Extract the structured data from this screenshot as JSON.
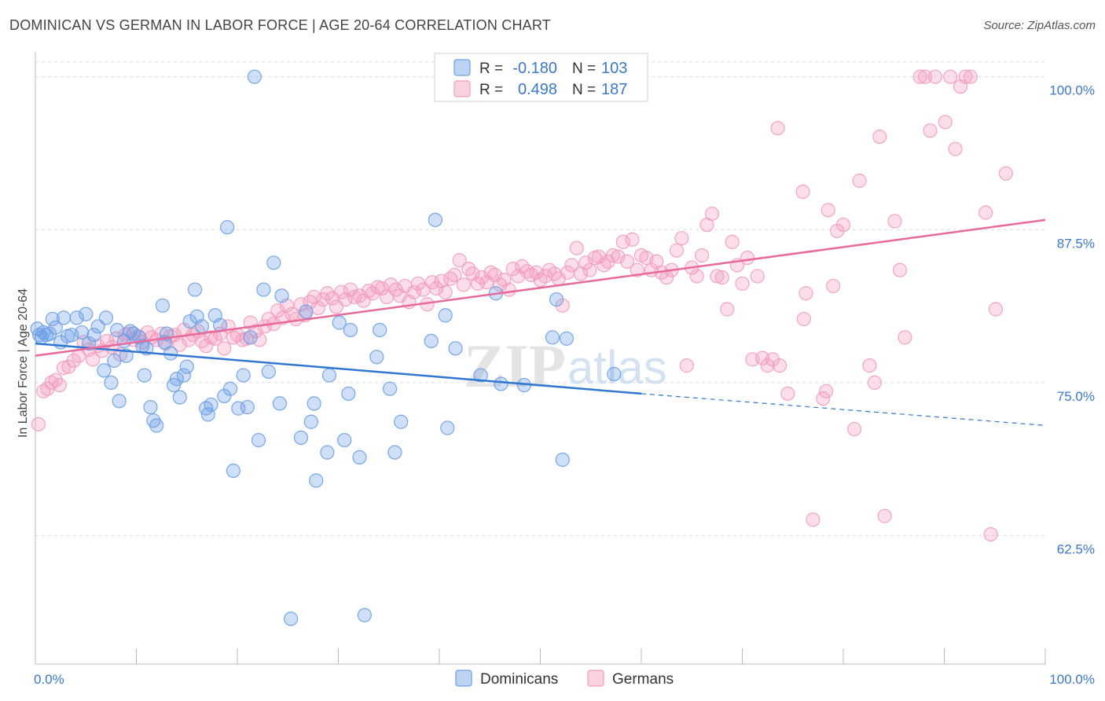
{
  "header": {
    "title": "DOMINICAN VS GERMAN IN LABOR FORCE | AGE 20-64 CORRELATION CHART",
    "source": "Source: ZipAtlas.com"
  },
  "chart_data": {
    "type": "scatter",
    "ylabel": "In Labor Force | Age 20-64",
    "x_tick_labels": [
      "0.0%",
      "100.0%"
    ],
    "y_tick_labels": [
      "100.0%",
      "87.5%",
      "75.0%",
      "62.5%"
    ],
    "y_ticks": [
      100,
      87.5,
      75,
      62.5
    ],
    "xlim": [
      0,
      100
    ],
    "ylim": [
      52,
      101.2
    ],
    "grid": true,
    "legend_position": "top-center",
    "watermark": "ZIPatlas",
    "colors": {
      "Dominicans": "#6a9ee6",
      "Germans": "#f29cbb",
      "Dominicans_line": "#2f77d1",
      "Germans_line": "#e8699a",
      "axis_tick_label": "#3a78c9"
    },
    "legend": [
      {
        "series": "Dominicans",
        "r_label": "R =",
        "r_value": "-0.180",
        "n_label": "N =",
        "n_value": "103"
      },
      {
        "series": "Germans",
        "r_label": "R =",
        "r_value": "0.498",
        "n_label": "N =",
        "n_value": "187"
      }
    ],
    "series": [
      {
        "name": "Dominicans",
        "trend": {
          "x0": 0,
          "y0": 78.2,
          "x1": 60,
          "y1": 74.1,
          "dash_to_x": 100,
          "dash_to_y": 71.5
        },
        "points": [
          [
            0.2,
            79.4
          ],
          [
            0.4,
            78.9
          ],
          [
            0.6,
            78.7
          ],
          [
            0.8,
            79.1
          ],
          [
            1.1,
            78.9
          ],
          [
            1.4,
            79.0
          ],
          [
            1.7,
            80.2
          ],
          [
            2.0,
            79.5
          ],
          [
            2.5,
            78.3
          ],
          [
            2.8,
            80.3
          ],
          [
            3.2,
            78.8
          ],
          [
            3.6,
            78.9
          ],
          [
            4.1,
            80.3
          ],
          [
            4.6,
            79.1
          ],
          [
            5.0,
            80.6
          ],
          [
            5.3,
            78.2
          ],
          [
            5.8,
            78.9
          ],
          [
            6.2,
            79.6
          ],
          [
            6.8,
            76.0
          ],
          [
            7.0,
            80.3
          ],
          [
            7.5,
            75.0
          ],
          [
            7.8,
            76.8
          ],
          [
            8.1,
            79.3
          ],
          [
            8.3,
            73.5
          ],
          [
            8.8,
            78.4
          ],
          [
            9.0,
            77.2
          ],
          [
            9.4,
            79.2
          ],
          [
            9.7,
            79.0
          ],
          [
            10.3,
            78.7
          ],
          [
            10.6,
            78.0
          ],
          [
            10.8,
            75.6
          ],
          [
            11.0,
            77.8
          ],
          [
            11.4,
            73.0
          ],
          [
            11.7,
            71.9
          ],
          [
            12.0,
            71.5
          ],
          [
            12.6,
            81.3
          ],
          [
            12.8,
            78.3
          ],
          [
            13.0,
            79.0
          ],
          [
            13.4,
            77.4
          ],
          [
            13.7,
            74.8
          ],
          [
            14.0,
            75.3
          ],
          [
            14.3,
            73.8
          ],
          [
            14.7,
            75.6
          ],
          [
            15.0,
            76.3
          ],
          [
            15.3,
            80.0
          ],
          [
            15.8,
            82.6
          ],
          [
            16.0,
            80.4
          ],
          [
            16.5,
            79.6
          ],
          [
            16.9,
            72.9
          ],
          [
            17.1,
            72.4
          ],
          [
            17.4,
            73.2
          ],
          [
            17.8,
            80.5
          ],
          [
            18.3,
            79.7
          ],
          [
            18.7,
            73.9
          ],
          [
            19.0,
            87.7
          ],
          [
            19.3,
            74.5
          ],
          [
            19.6,
            67.8
          ],
          [
            20.1,
            72.9
          ],
          [
            20.6,
            75.6
          ],
          [
            21.0,
            73.0
          ],
          [
            21.3,
            78.7
          ],
          [
            21.7,
            100.0
          ],
          [
            22.1,
            70.3
          ],
          [
            22.6,
            82.6
          ],
          [
            23.1,
            75.9
          ],
          [
            23.6,
            84.8
          ],
          [
            24.2,
            73.3
          ],
          [
            24.4,
            82.1
          ],
          [
            25.3,
            55.7
          ],
          [
            26.3,
            70.5
          ],
          [
            26.8,
            80.8
          ],
          [
            27.3,
            71.8
          ],
          [
            27.6,
            73.3
          ],
          [
            27.8,
            67.0
          ],
          [
            28.9,
            69.3
          ],
          [
            29.1,
            75.6
          ],
          [
            30.1,
            79.9
          ],
          [
            30.6,
            70.3
          ],
          [
            31.0,
            74.1
          ],
          [
            31.2,
            79.3
          ],
          [
            32.1,
            68.9
          ],
          [
            32.6,
            56.0
          ],
          [
            33.8,
            77.1
          ],
          [
            34.1,
            79.3
          ],
          [
            35.1,
            74.5
          ],
          [
            35.6,
            69.3
          ],
          [
            36.2,
            71.8
          ],
          [
            39.2,
            78.4
          ],
          [
            39.6,
            88.3
          ],
          [
            40.6,
            80.5
          ],
          [
            40.8,
            71.3
          ],
          [
            41.6,
            77.8
          ],
          [
            44.1,
            75.6
          ],
          [
            45.6,
            82.3
          ],
          [
            46.1,
            74.9
          ],
          [
            48.4,
            74.8
          ],
          [
            51.2,
            78.7
          ],
          [
            51.6,
            81.8
          ],
          [
            52.2,
            68.7
          ],
          [
            52.6,
            78.6
          ],
          [
            57.3,
            75.7
          ]
        ]
      },
      {
        "name": "Germans",
        "trend": {
          "x0": 0,
          "y0": 77.2,
          "x1": 100,
          "y1": 88.3
        },
        "points": [
          [
            0.3,
            71.6
          ],
          [
            0.8,
            74.3
          ],
          [
            1.2,
            74.5
          ],
          [
            1.6,
            75.0
          ],
          [
            2.0,
            75.2
          ],
          [
            2.4,
            74.8
          ],
          [
            2.8,
            76.2
          ],
          [
            3.3,
            76.3
          ],
          [
            3.8,
            76.8
          ],
          [
            4.3,
            77.2
          ],
          [
            4.8,
            78.3
          ],
          [
            5.3,
            77.7
          ],
          [
            5.7,
            76.9
          ],
          [
            6.2,
            78.0
          ],
          [
            6.6,
            77.6
          ],
          [
            7.1,
            78.4
          ],
          [
            7.6,
            77.9
          ],
          [
            8.0,
            78.6
          ],
          [
            8.4,
            77.3
          ],
          [
            8.9,
            78.9
          ],
          [
            9.2,
            79.0
          ],
          [
            9.7,
            78.5
          ],
          [
            10.2,
            78.8
          ],
          [
            10.6,
            78.3
          ],
          [
            11.1,
            79.1
          ],
          [
            11.5,
            78.7
          ],
          [
            12.0,
            78.5
          ],
          [
            12.5,
            79.0
          ],
          [
            12.9,
            78.2
          ],
          [
            13.4,
            78.8
          ],
          [
            13.8,
            78.9
          ],
          [
            14.3,
            78.1
          ],
          [
            14.7,
            79.3
          ],
          [
            15.2,
            78.5
          ],
          [
            15.6,
            78.9
          ],
          [
            16.1,
            79.2
          ],
          [
            16.5,
            78.4
          ],
          [
            16.9,
            78.0
          ],
          [
            17.4,
            78.7
          ],
          [
            17.8,
            78.6
          ],
          [
            18.3,
            79.0
          ],
          [
            18.7,
            77.8
          ],
          [
            19.1,
            79.6
          ],
          [
            19.6,
            78.7
          ],
          [
            20.0,
            78.9
          ],
          [
            20.5,
            78.5
          ],
          [
            20.9,
            78.6
          ],
          [
            21.3,
            79.9
          ],
          [
            21.8,
            79.2
          ],
          [
            22.2,
            78.5
          ],
          [
            22.7,
            79.6
          ],
          [
            23.1,
            80.2
          ],
          [
            23.6,
            79.8
          ],
          [
            24.0,
            80.9
          ],
          [
            24.5,
            80.3
          ],
          [
            24.9,
            81.3
          ],
          [
            25.4,
            80.6
          ],
          [
            25.8,
            80.2
          ],
          [
            26.3,
            81.4
          ],
          [
            26.7,
            80.5
          ],
          [
            27.2,
            81.6
          ],
          [
            27.6,
            82.0
          ],
          [
            28.0,
            81.1
          ],
          [
            28.5,
            81.8
          ],
          [
            28.9,
            82.3
          ],
          [
            29.4,
            81.9
          ],
          [
            29.8,
            81.2
          ],
          [
            30.3,
            82.4
          ],
          [
            30.7,
            81.8
          ],
          [
            31.2,
            82.6
          ],
          [
            31.6,
            82.0
          ],
          [
            32.1,
            82.1
          ],
          [
            32.5,
            81.7
          ],
          [
            33.0,
            82.5
          ],
          [
            33.4,
            82.3
          ],
          [
            33.9,
            82.8
          ],
          [
            34.3,
            82.7
          ],
          [
            34.8,
            82.0
          ],
          [
            35.2,
            83.0
          ],
          [
            35.7,
            82.6
          ],
          [
            36.1,
            82.1
          ],
          [
            36.6,
            82.9
          ],
          [
            37.0,
            81.6
          ],
          [
            37.5,
            82.4
          ],
          [
            37.9,
            83.1
          ],
          [
            38.4,
            82.6
          ],
          [
            38.8,
            81.4
          ],
          [
            39.3,
            83.2
          ],
          [
            39.7,
            82.7
          ],
          [
            40.2,
            83.3
          ],
          [
            40.6,
            82.4
          ],
          [
            41.1,
            83.5
          ],
          [
            41.5,
            83.8
          ],
          [
            42.0,
            85.0
          ],
          [
            42.4,
            83.0
          ],
          [
            42.9,
            84.3
          ],
          [
            43.3,
            83.9
          ],
          [
            43.8,
            83.1
          ],
          [
            44.2,
            83.6
          ],
          [
            44.7,
            83.2
          ],
          [
            45.1,
            84.0
          ],
          [
            45.5,
            83.8
          ],
          [
            46.0,
            83.0
          ],
          [
            46.4,
            83.4
          ],
          [
            46.9,
            82.6
          ],
          [
            47.3,
            84.3
          ],
          [
            47.8,
            83.7
          ],
          [
            48.2,
            84.5
          ],
          [
            48.7,
            84.1
          ],
          [
            49.1,
            83.8
          ],
          [
            49.6,
            84.0
          ],
          [
            50.0,
            83.4
          ],
          [
            50.5,
            83.7
          ],
          [
            50.9,
            84.2
          ],
          [
            51.4,
            83.9
          ],
          [
            51.8,
            83.5
          ],
          [
            52.2,
            81.3
          ],
          [
            52.7,
            84.0
          ],
          [
            53.1,
            84.6
          ],
          [
            53.6,
            86.0
          ],
          [
            54.0,
            83.9
          ],
          [
            54.5,
            84.8
          ],
          [
            54.9,
            84.2
          ],
          [
            55.4,
            85.2
          ],
          [
            55.8,
            85.3
          ],
          [
            56.3,
            84.6
          ],
          [
            56.7,
            84.9
          ],
          [
            57.2,
            85.4
          ],
          [
            57.7,
            85.3
          ],
          [
            58.2,
            86.5
          ],
          [
            58.6,
            84.9
          ],
          [
            59.1,
            86.7
          ],
          [
            59.6,
            84.2
          ],
          [
            60.0,
            85.4
          ],
          [
            60.5,
            85.2
          ],
          [
            61.0,
            84.2
          ],
          [
            61.5,
            84.9
          ],
          [
            62.0,
            84.0
          ],
          [
            62.5,
            83.6
          ],
          [
            63.0,
            84.2
          ],
          [
            63.5,
            85.8
          ],
          [
            64.0,
            86.8
          ],
          [
            64.5,
            76.4
          ],
          [
            65.0,
            84.4
          ],
          [
            65.5,
            83.7
          ],
          [
            66.0,
            85.4
          ],
          [
            66.5,
            87.9
          ],
          [
            67.0,
            88.8
          ],
          [
            67.5,
            83.7
          ],
          [
            68.0,
            83.6
          ],
          [
            68.5,
            81.0
          ],
          [
            69.0,
            86.5
          ],
          [
            69.5,
            84.6
          ],
          [
            70.0,
            83.1
          ],
          [
            70.5,
            85.2
          ],
          [
            71.0,
            76.9
          ],
          [
            71.5,
            83.7
          ],
          [
            72.0,
            77.0
          ],
          [
            72.5,
            76.4
          ],
          [
            73.0,
            76.9
          ],
          [
            73.5,
            95.8
          ],
          [
            73.7,
            76.4
          ],
          [
            74.5,
            74.1
          ],
          [
            76.0,
            90.6
          ],
          [
            76.1,
            80.2
          ],
          [
            76.3,
            82.3
          ],
          [
            77.0,
            63.8
          ],
          [
            78.0,
            73.7
          ],
          [
            78.3,
            74.3
          ],
          [
            78.5,
            89.1
          ],
          [
            79.0,
            82.9
          ],
          [
            79.4,
            87.4
          ],
          [
            80.0,
            87.9
          ],
          [
            81.1,
            71.2
          ],
          [
            81.6,
            91.5
          ],
          [
            82.6,
            76.4
          ],
          [
            83.1,
            75.0
          ],
          [
            83.6,
            95.1
          ],
          [
            84.1,
            64.1
          ],
          [
            85.1,
            88.2
          ],
          [
            85.6,
            84.2
          ],
          [
            86.1,
            78.7
          ],
          [
            87.6,
            100.0
          ],
          [
            88.1,
            100.0
          ],
          [
            88.6,
            95.6
          ],
          [
            89.1,
            100.0
          ],
          [
            90.1,
            96.3
          ],
          [
            90.6,
            100.0
          ],
          [
            91.1,
            94.1
          ],
          [
            91.6,
            99.2
          ],
          [
            92.1,
            100.0
          ],
          [
            92.6,
            100.0
          ],
          [
            94.1,
            88.9
          ],
          [
            94.6,
            62.6
          ],
          [
            95.1,
            81.0
          ],
          [
            96.1,
            92.1
          ]
        ]
      }
    ]
  }
}
